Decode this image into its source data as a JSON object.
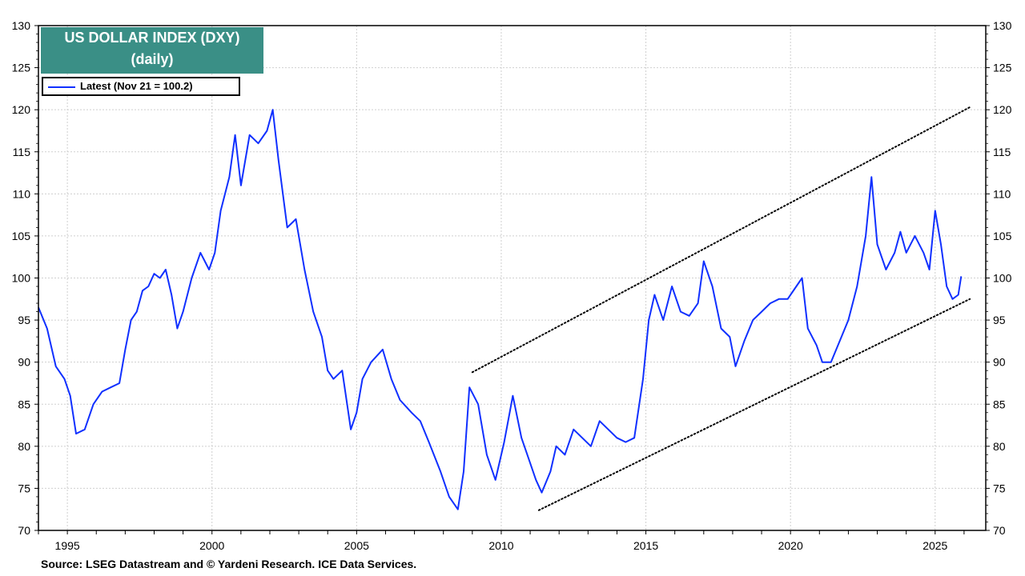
{
  "chart_data": {
    "type": "line",
    "title": "US DOLLAR INDEX (DXY)",
    "subtitle": "(daily)",
    "ylim": [
      70,
      130
    ],
    "y_ticks": [
      70,
      75,
      80,
      85,
      90,
      95,
      100,
      105,
      110,
      115,
      120,
      125,
      130
    ],
    "xlim": [
      1994.0,
      2026.75
    ],
    "x_ticks": [
      "1995",
      "2000",
      "2005",
      "2010",
      "2015",
      "2020",
      "2025"
    ],
    "grid": true,
    "legend_position": "top-left",
    "colors": {
      "series": "#1030ff",
      "title_bg": "#3a8f86"
    },
    "series": [
      {
        "name": "Latest (Nov 21 = 100.2)",
        "x": [
          1994.0,
          1994.3,
          1994.6,
          1994.9,
          1995.1,
          1995.3,
          1995.6,
          1995.9,
          1996.2,
          1996.5,
          1996.8,
          1997.0,
          1997.2,
          1997.4,
          1997.6,
          1997.8,
          1998.0,
          1998.2,
          1998.4,
          1998.6,
          1998.8,
          1999.0,
          1999.3,
          1999.6,
          1999.9,
          2000.1,
          2000.3,
          2000.6,
          2000.8,
          2001.0,
          2001.3,
          2001.6,
          2001.9,
          2002.1,
          2002.3,
          2002.6,
          2002.9,
          2003.2,
          2003.5,
          2003.8,
          2004.0,
          2004.2,
          2004.5,
          2004.8,
          2005.0,
          2005.2,
          2005.5,
          2005.9,
          2006.2,
          2006.5,
          2006.9,
          2007.2,
          2007.5,
          2007.9,
          2008.2,
          2008.5,
          2008.7,
          2008.9,
          2009.2,
          2009.5,
          2009.8,
          2010.1,
          2010.4,
          2010.7,
          2010.9,
          2011.2,
          2011.4,
          2011.7,
          2011.9,
          2012.2,
          2012.5,
          2012.8,
          2013.1,
          2013.4,
          2013.7,
          2014.0,
          2014.3,
          2014.6,
          2014.9,
          2015.1,
          2015.3,
          2015.6,
          2015.9,
          2016.2,
          2016.5,
          2016.8,
          2017.0,
          2017.3,
          2017.6,
          2017.9,
          2018.1,
          2018.4,
          2018.7,
          2019.0,
          2019.3,
          2019.6,
          2019.9,
          2020.2,
          2020.4,
          2020.6,
          2020.9,
          2021.1,
          2021.4,
          2021.7,
          2022.0,
          2022.3,
          2022.6,
          2022.8,
          2023.0,
          2023.3,
          2023.6,
          2023.8,
          2024.0,
          2024.3,
          2024.6,
          2024.8,
          2025.0,
          2025.2,
          2025.4,
          2025.6,
          2025.8,
          2025.9
        ],
        "values": [
          96.5,
          94.0,
          89.5,
          88.0,
          86.0,
          81.5,
          82.0,
          85.0,
          86.5,
          87.0,
          87.5,
          91.5,
          95.0,
          96.0,
          98.5,
          99.0,
          100.5,
          100.0,
          101.0,
          98.0,
          94.0,
          96.0,
          100.0,
          103.0,
          101.0,
          103.0,
          108.0,
          112.0,
          117.0,
          111.0,
          117.0,
          116.0,
          117.5,
          120.0,
          114.0,
          106.0,
          107.0,
          101.0,
          96.0,
          93.0,
          89.0,
          88.0,
          89.0,
          82.0,
          84.0,
          88.0,
          90.0,
          91.5,
          88.0,
          85.5,
          84.0,
          83.0,
          80.5,
          77.0,
          74.0,
          72.5,
          77.0,
          87.0,
          85.0,
          79.0,
          76.0,
          80.5,
          86.0,
          81.0,
          79.0,
          76.0,
          74.5,
          77.0,
          80.0,
          79.0,
          82.0,
          81.0,
          80.0,
          83.0,
          82.0,
          81.0,
          80.5,
          81.0,
          88.0,
          95.0,
          98.0,
          95.0,
          99.0,
          96.0,
          95.5,
          97.0,
          102.0,
          99.0,
          94.0,
          93.0,
          89.5,
          92.5,
          95.0,
          96.0,
          97.0,
          97.5,
          97.5,
          99.0,
          100.0,
          94.0,
          92.0,
          90.0,
          90.0,
          92.5,
          95.0,
          99.0,
          105.0,
          112.0,
          104.0,
          101.0,
          103.0,
          105.5,
          103.0,
          105.0,
          103.0,
          101.0,
          108.0,
          104.0,
          99.0,
          97.5,
          98.0,
          100.2
        ]
      }
    ],
    "trendlines": [
      {
        "from": {
          "x": 2009.0,
          "y": 88.8
        },
        "to": {
          "x": 2026.2,
          "y": 120.3
        }
      },
      {
        "from": {
          "x": 2011.3,
          "y": 72.4
        },
        "to": {
          "x": 2026.2,
          "y": 97.5
        }
      }
    ]
  },
  "legend": {
    "latest_label": "Latest (Nov 21 = 100.2)"
  },
  "source": "Source: LSEG Datastream and © Yardeni Research. ICE Data Services."
}
